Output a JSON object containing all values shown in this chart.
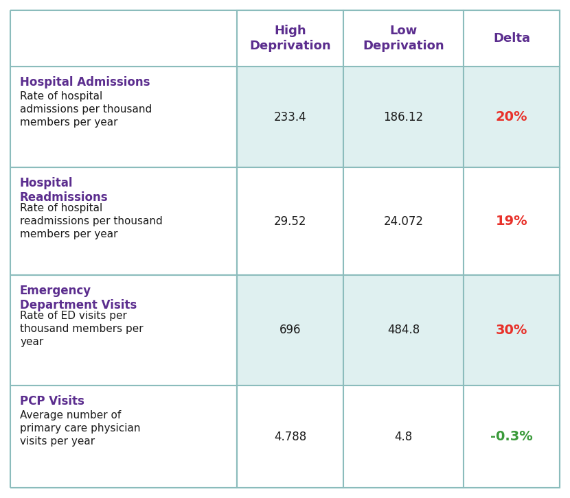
{
  "col_headers": [
    "High\nDeprivation",
    "Low\nDeprivation",
    "Delta"
  ],
  "rows": [
    {
      "title": "Hospital Admissions",
      "description": "Rate of hospital\nadmissions per thousand\nmembers per year",
      "high_dep": "233.4",
      "low_dep": "186.12",
      "delta": "20%",
      "delta_color": "#e8312a",
      "bg_color": "#dff0f0"
    },
    {
      "title": "Hospital\nReadmissions",
      "description": "Rate of hospital\nreadmissions per thousand\nmembers per year",
      "high_dep": "29.52",
      "low_dep": "24.072",
      "delta": "19%",
      "delta_color": "#e8312a",
      "bg_color": "#ffffff"
    },
    {
      "title": "Emergency\nDepartment Visits",
      "description": "Rate of ED visits per\nthousand members per\nyear",
      "high_dep": "696",
      "low_dep": "484.8",
      "delta": "30%",
      "delta_color": "#e8312a",
      "bg_color": "#dff0f0"
    },
    {
      "title": "PCP Visits",
      "description": "Average number of\nprimary care physician\nvisits per year",
      "high_dep": "4.788",
      "low_dep": "4.8",
      "delta": "-0.3%",
      "delta_color": "#3a9a3a",
      "bg_color": "#ffffff"
    }
  ],
  "header_text_color": "#5b2d8e",
  "row_title_color": "#5b2d8e",
  "row_desc_color": "#1a1a1a",
  "data_text_color": "#1a1a1a",
  "border_color": "#8bbcbc",
  "figure_bg": "#ffffff",
  "fig_width": 8.3,
  "fig_height": 7.26,
  "dpi": 100
}
